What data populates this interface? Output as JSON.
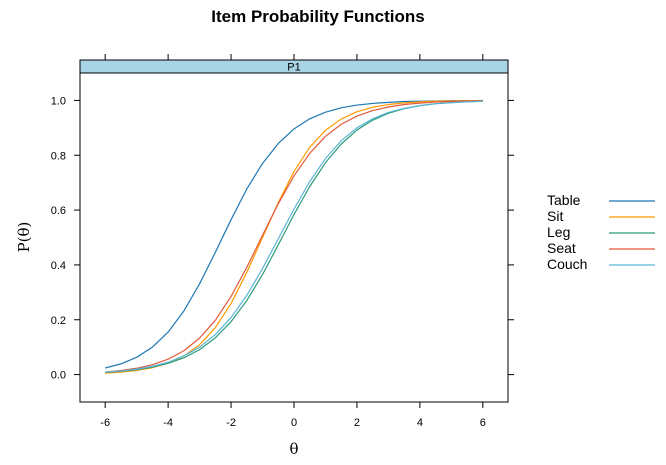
{
  "chart_data": {
    "type": "line",
    "title": "Item Probability Functions",
    "panel": "P1",
    "xlabel": "θ",
    "ylabel": "P(θ)",
    "xlim": [
      -6.8,
      6.8
    ],
    "ylim": [
      -0.1,
      1.1
    ],
    "x_ticks": [
      -6,
      -4,
      -2,
      0,
      2,
      4,
      6
    ],
    "y_ticks": [
      0.0,
      0.2,
      0.4,
      0.6,
      0.8,
      1.0
    ],
    "x_tick_labels": [
      "-6",
      "-4",
      "-2",
      "0",
      "2",
      "4",
      "6"
    ],
    "y_tick_labels": [
      "0.0",
      "0.2",
      "0.4",
      "0.6",
      "0.8",
      "1.0"
    ],
    "grid": false,
    "legend_position": "right",
    "x": [
      -6,
      -5.5,
      -5,
      -4.5,
      -4,
      -3.5,
      -3,
      -2.5,
      -2,
      -1.5,
      -1,
      -0.5,
      0,
      0.5,
      1,
      1.5,
      2,
      2.5,
      3,
      3.5,
      4,
      4.5,
      5,
      5.5,
      6
    ],
    "series": [
      {
        "name": "Table",
        "color": "#1f78b4",
        "values": [
          0.024,
          0.039,
          0.063,
          0.1,
          0.155,
          0.232,
          0.331,
          0.446,
          0.565,
          0.677,
          0.77,
          0.843,
          0.896,
          0.933,
          0.957,
          0.973,
          0.983,
          0.989,
          0.993,
          0.996,
          0.997,
          0.998,
          0.999,
          0.999,
          1.0
        ]
      },
      {
        "name": "Sit",
        "color": "#ff9900",
        "values": [
          0.005,
          0.009,
          0.015,
          0.025,
          0.041,
          0.068,
          0.109,
          0.171,
          0.259,
          0.373,
          0.5,
          0.627,
          0.741,
          0.829,
          0.891,
          0.932,
          0.959,
          0.975,
          0.985,
          0.991,
          0.995,
          0.997,
          0.998,
          0.999,
          0.999
        ]
      },
      {
        "name": "Leg",
        "color": "#2a9a78",
        "values": [
          0.008,
          0.012,
          0.018,
          0.027,
          0.041,
          0.061,
          0.091,
          0.134,
          0.193,
          0.27,
          0.365,
          0.473,
          0.584,
          0.686,
          0.773,
          0.841,
          0.892,
          0.928,
          0.953,
          0.97,
          0.981,
          0.988,
          0.992,
          0.995,
          0.997
        ]
      },
      {
        "name": "Seat",
        "color": "#e05a3a",
        "values": [
          0.009,
          0.015,
          0.023,
          0.036,
          0.056,
          0.087,
          0.133,
          0.198,
          0.285,
          0.391,
          0.508,
          0.623,
          0.725,
          0.807,
          0.869,
          0.913,
          0.943,
          0.963,
          0.976,
          0.985,
          0.99,
          0.994,
          0.996,
          0.998,
          0.998
        ]
      },
      {
        "name": "Couch",
        "color": "#5ab4d6",
        "values": [
          0.009,
          0.013,
          0.02,
          0.03,
          0.045,
          0.068,
          0.1,
          0.146,
          0.208,
          0.289,
          0.387,
          0.495,
          0.604,
          0.704,
          0.788,
          0.853,
          0.9,
          0.933,
          0.956,
          0.971,
          0.981,
          0.988,
          0.992,
          0.995,
          0.997
        ]
      }
    ]
  }
}
